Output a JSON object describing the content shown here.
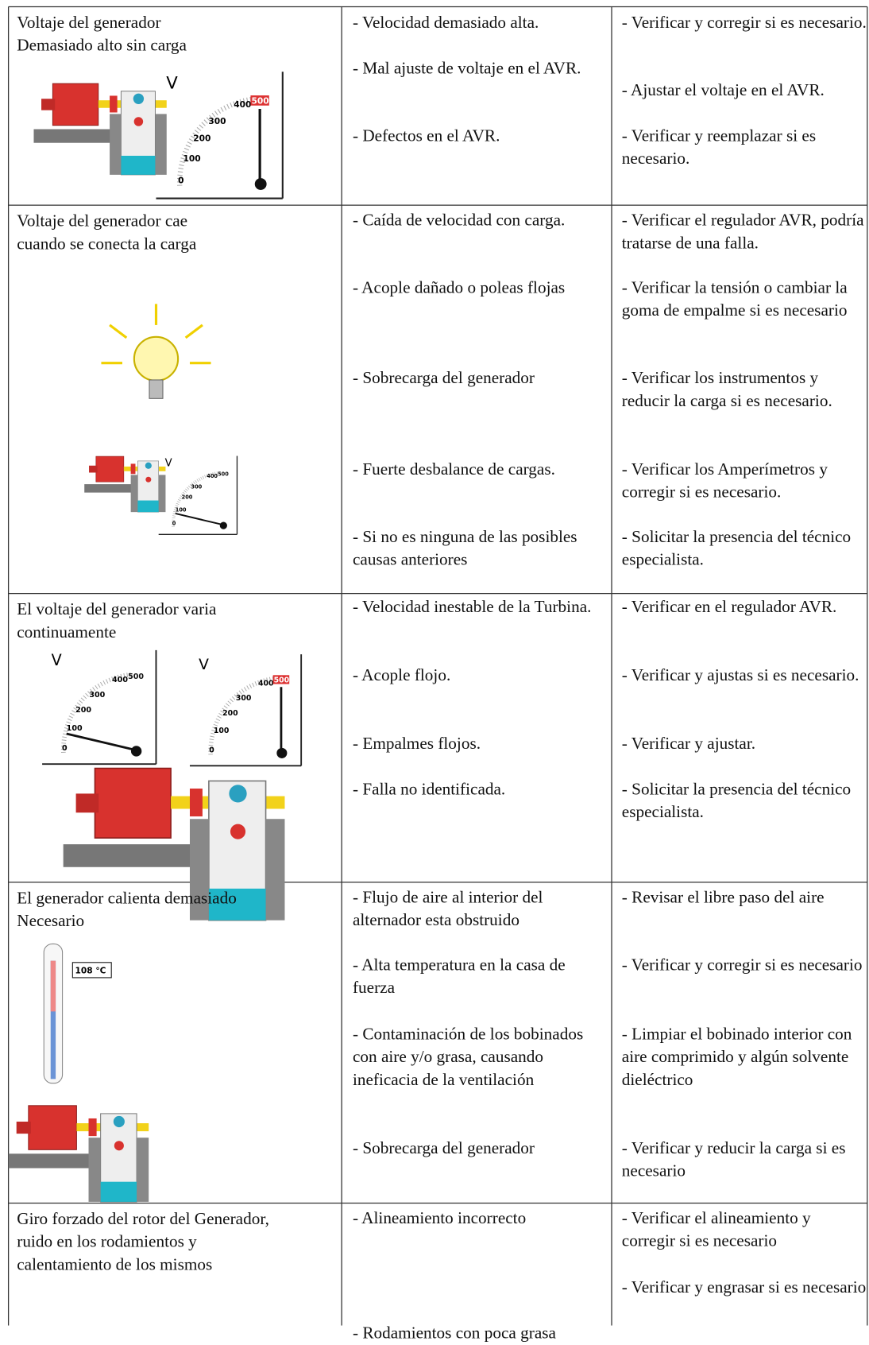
{
  "rows": [
    {
      "problem": "Voltaje del generador\nDemasiado alto sin carga",
      "causes": [
        "- Velocidad demasiado alta.",
        "- Mal ajuste de voltaje en el AVR.",
        "- Defectos en el AVR."
      ],
      "solutions": [
        "- Verificar y corregir si es necesario.",
        "- Ajustar el voltaje en el AVR.",
        "- Verificar y reemplazar si es necesario."
      ]
    },
    {
      "problem": "Voltaje del generador cae\ncuando se conecta la carga",
      "causes": [
        "- Caída de velocidad con carga.",
        "- Acople dañado o poleas flojas",
        "- Sobrecarga del generador",
        "- Fuerte desbalance de cargas.",
        "- Si no es ninguna de las posibles causas anteriores"
      ],
      "solutions": [
        "- Verificar el regulador AVR, podría tratarse de una falla.",
        "- Verificar la tensión o cambiar la goma de empalme si es necesario",
        "- Verificar los instrumentos y reducir la carga si es necesario.",
        "- Verificar los Amperímetros y corregir si es necesario.",
        "- Solicitar la presencia del técnico especialista."
      ]
    },
    {
      "problem": "El voltaje del generador varia\ncontinuamente",
      "causes": [
        "- Velocidad inestable de la Turbina.",
        "- Acople flojo.",
        "- Empalmes flojos.",
        "- Falla no identificada."
      ],
      "solutions": [
        "- Verificar en el regulador AVR.",
        "- Verificar y ajustas si es necesario.",
        "- Verificar y ajustar.",
        "- Solicitar la presencia del técnico especialista."
      ]
    },
    {
      "problem": "El generador calienta demasiado\nNecesario",
      "causes": [
        "- Flujo de aire al interior del alternador esta obstruido",
        "- Alta temperatura en la casa de fuerza",
        "- Contaminación de los bobinados con aire y/o grasa, causando ineficacia de la ventilación",
        "- Sobrecarga del generador"
      ],
      "solutions": [
        "- Revisar el libre paso del aire",
        "- Verificar y corregir si es necesario",
        "- Limpiar el bobinado interior con aire comprimido y algún solvente dieléctrico",
        "- Verificar y reducir la carga si es necesario"
      ]
    },
    {
      "problem": "Giro forzado del rotor del Generador,\nruido en los rodamientos y\ncalentamiento de los mismos",
      "causes": [
        "- Alineamiento incorrecto",
        "- Rodamientos con poca grasa"
      ],
      "solutions": [
        "- Verificar el alineamiento y corregir si es necesario",
        "- Verificar y engrasar si es necesario"
      ]
    }
  ],
  "figures": {
    "gauge_unit": "V",
    "gauge_scale": [
      "0",
      "100",
      "200",
      "300",
      "400",
      "500"
    ],
    "thermometer": "108 °C"
  }
}
